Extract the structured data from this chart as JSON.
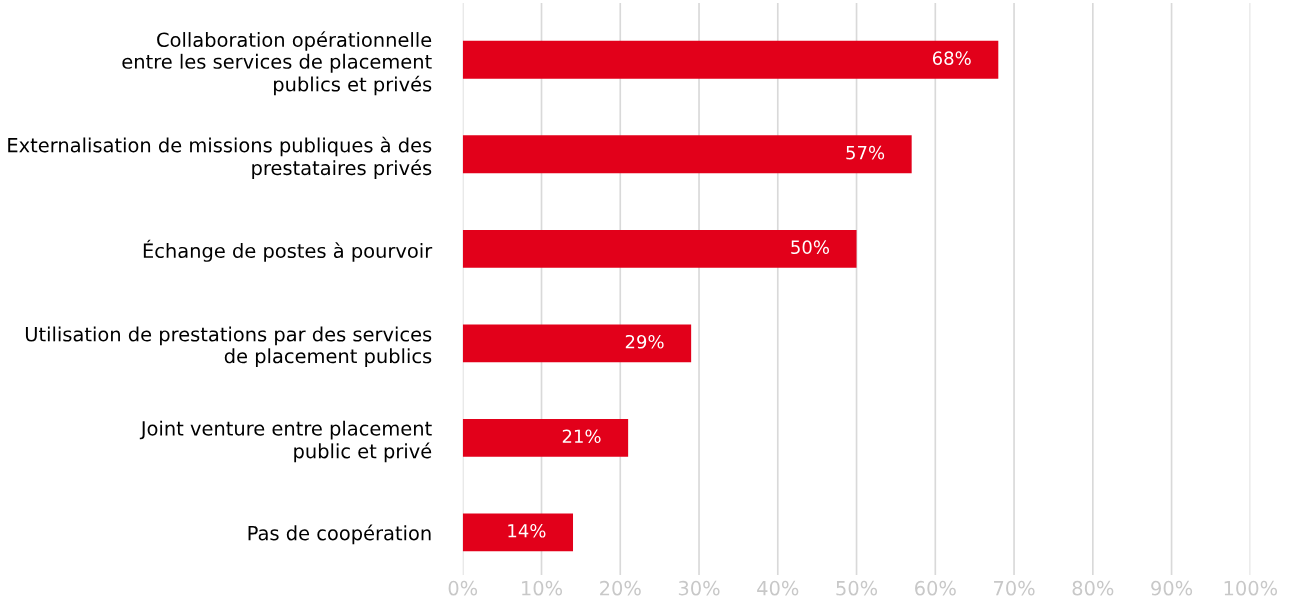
{
  "chart_data": {
    "type": "bar",
    "orientation": "horizontal",
    "categories": [
      "Collaboration opérationnelle\nentre les services de placement\npublics et privés",
      "Externalisation de missions publiques à des\nprestataires privés",
      "Échange de postes à pourvoir",
      "Utilisation de prestations par des services\nde placement publics",
      "Joint venture entre placement\npublic et privé",
      "Pas de coopération"
    ],
    "values": [
      68,
      57,
      50,
      29,
      21,
      14
    ],
    "value_labels": [
      "68%",
      "57%",
      "50%",
      "29%",
      "21%",
      "14%"
    ],
    "color": "#e2001a",
    "xlim": [
      0,
      100
    ],
    "xticks": [
      {
        "value": 0,
        "label": "0%"
      },
      {
        "value": 10,
        "label": "10%"
      },
      {
        "value": 20,
        "label": "20%"
      },
      {
        "value": 30,
        "label": "30%"
      },
      {
        "value": 40,
        "label": "40%"
      },
      {
        "value": 50,
        "label": "50%"
      },
      {
        "value": 60,
        "label": "60%"
      },
      {
        "value": 70,
        "label": "70%"
      },
      {
        "value": 80,
        "label": "80%"
      },
      {
        "value": 90,
        "label": "90%"
      },
      {
        "value": 100,
        "label": "100%"
      }
    ],
    "grid": "x",
    "legend": false
  }
}
